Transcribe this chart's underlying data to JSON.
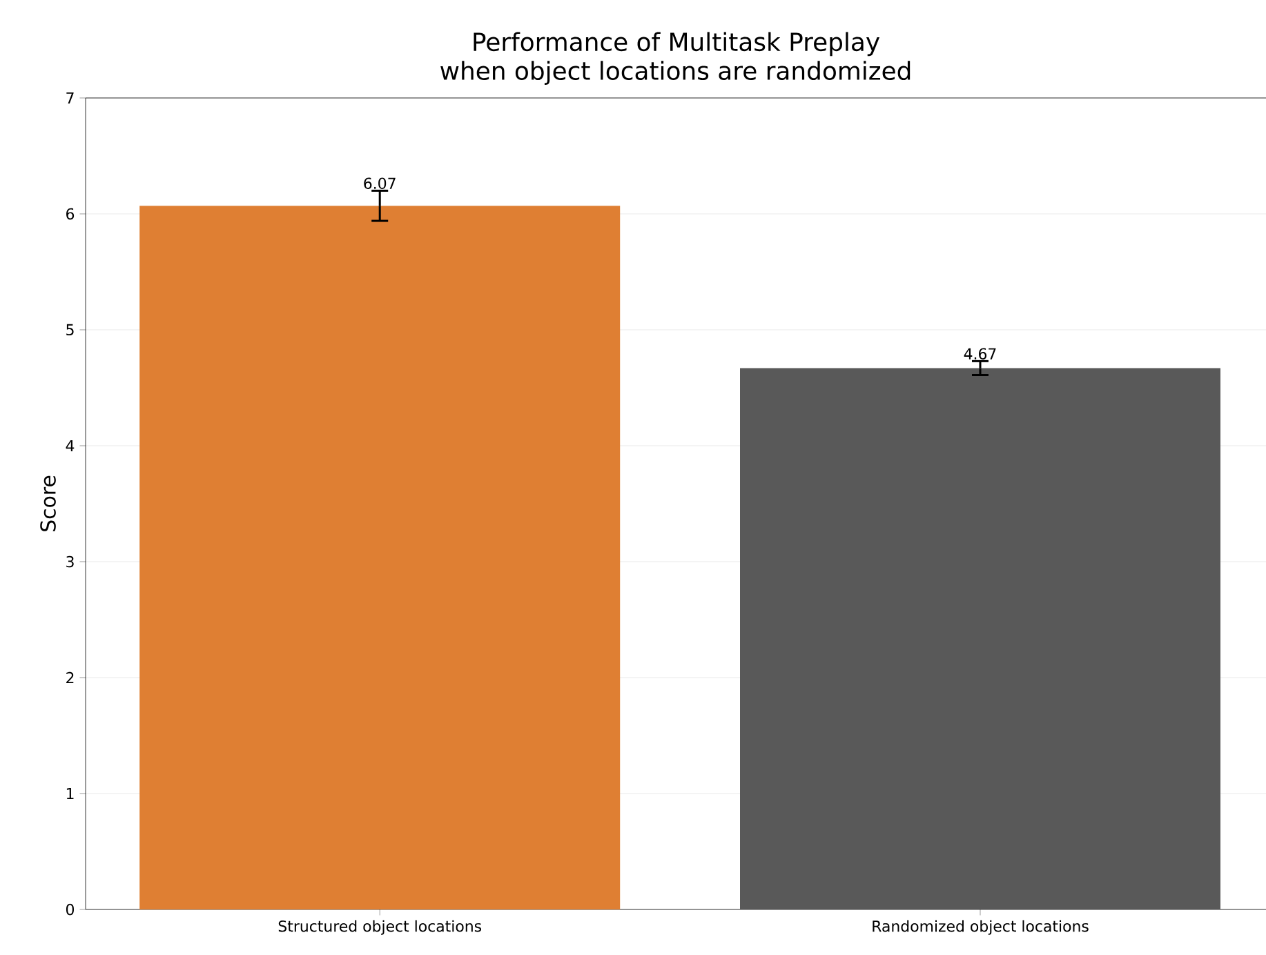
{
  "chart_data": {
    "type": "bar",
    "title": "Performance of Multitask Preplay\nwhen object locations are randomized",
    "ylabel": "Score",
    "categories": [
      "Structured object locations",
      "Randomized object locations"
    ],
    "values": [
      6.07,
      4.67
    ],
    "colors": [
      "#df7f33",
      "#595959"
    ],
    "errors": [
      0.13,
      0.06
    ],
    "data_labels": true,
    "ylim": [
      0,
      7
    ],
    "yticks": [
      0,
      1,
      2,
      3,
      4,
      5,
      6,
      7
    ],
    "grid": "y"
  }
}
